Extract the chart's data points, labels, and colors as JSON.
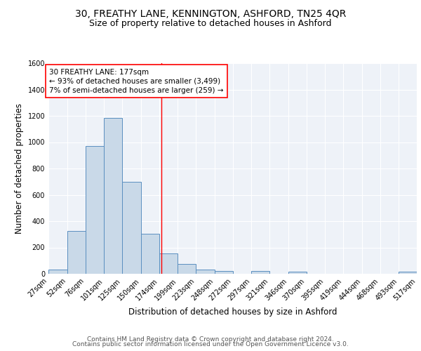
{
  "title1": "30, FREATHY LANE, KENNINGTON, ASHFORD, TN25 4QR",
  "title2": "Size of property relative to detached houses in Ashford",
  "xlabel": "Distribution of detached houses by size in Ashford",
  "ylabel": "Number of detached properties",
  "bin_edges": [
    27,
    52,
    76,
    101,
    125,
    150,
    174,
    199,
    223,
    248,
    272,
    297,
    321,
    346,
    370,
    395,
    419,
    444,
    468,
    493,
    517
  ],
  "bar_heights": [
    30,
    325,
    970,
    1185,
    700,
    305,
    155,
    75,
    30,
    20,
    0,
    20,
    0,
    15,
    0,
    0,
    0,
    0,
    0,
    15
  ],
  "bar_color": "#c9d9e8",
  "bar_edge_color": "#5a8fc0",
  "bg_color": "#eef2f8",
  "grid_color": "#ffffff",
  "red_line_x": 177,
  "ylim": [
    0,
    1600
  ],
  "yticks": [
    0,
    200,
    400,
    600,
    800,
    1000,
    1200,
    1400,
    1600
  ],
  "annotation_line1": "30 FREATHY LANE: 177sqm",
  "annotation_line2": "← 93% of detached houses are smaller (3,499)",
  "annotation_line3": "7% of semi-detached houses are larger (259) →",
  "footer_line1": "Contains HM Land Registry data © Crown copyright and database right 2024.",
  "footer_line2": "Contains public sector information licensed under the Open Government Licence v3.0.",
  "title1_fontsize": 10,
  "title2_fontsize": 9,
  "xlabel_fontsize": 8.5,
  "ylabel_fontsize": 8.5,
  "tick_fontsize": 7,
  "annotation_fontsize": 7.5,
  "footer_fontsize": 6.5
}
